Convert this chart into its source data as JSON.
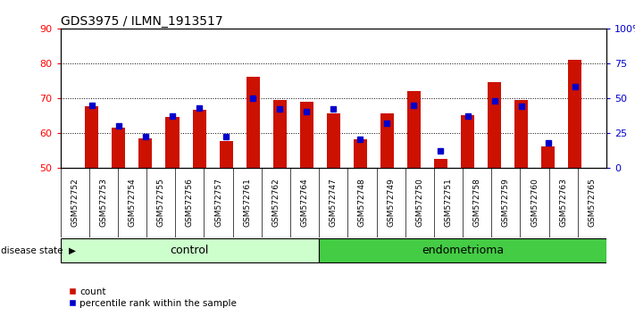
{
  "title": "GDS3975 / ILMN_1913517",
  "samples": [
    "GSM572752",
    "GSM572753",
    "GSM572754",
    "GSM572755",
    "GSM572756",
    "GSM572757",
    "GSM572761",
    "GSM572762",
    "GSM572764",
    "GSM572747",
    "GSM572748",
    "GSM572749",
    "GSM572750",
    "GSM572751",
    "GSM572758",
    "GSM572759",
    "GSM572760",
    "GSM572763",
    "GSM572765"
  ],
  "counts": [
    67.5,
    61.5,
    58.5,
    64.5,
    66.5,
    57.5,
    76.0,
    69.5,
    69.0,
    65.5,
    58.0,
    65.5,
    72.0,
    52.5,
    65.0,
    74.5,
    69.5,
    56.0,
    81.0
  ],
  "percentiles": [
    45,
    30,
    22,
    37,
    43,
    22,
    50,
    42,
    40,
    42,
    20,
    32,
    45,
    12,
    37,
    48,
    44,
    18,
    58
  ],
  "groups": [
    "control",
    "control",
    "control",
    "control",
    "control",
    "control",
    "control",
    "control",
    "control",
    "endometrioma",
    "endometrioma",
    "endometrioma",
    "endometrioma",
    "endometrioma",
    "endometrioma",
    "endometrioma",
    "endometrioma",
    "endometrioma",
    "endometrioma"
  ],
  "ylim_left": [
    50,
    90
  ],
  "ylim_right": [
    0,
    100
  ],
  "yticks_left": [
    50,
    60,
    70,
    80,
    90
  ],
  "yticks_right": [
    0,
    25,
    50,
    75,
    100
  ],
  "bar_color": "#cc1100",
  "dot_color": "#0000cc",
  "control_color": "#ccffcc",
  "endometrioma_color": "#44cc44",
  "legend_count": "count",
  "legend_pct": "percentile rank within the sample",
  "bar_width": 0.5,
  "plot_bg": "#ffffff",
  "tick_bg": "#d4d4d4"
}
